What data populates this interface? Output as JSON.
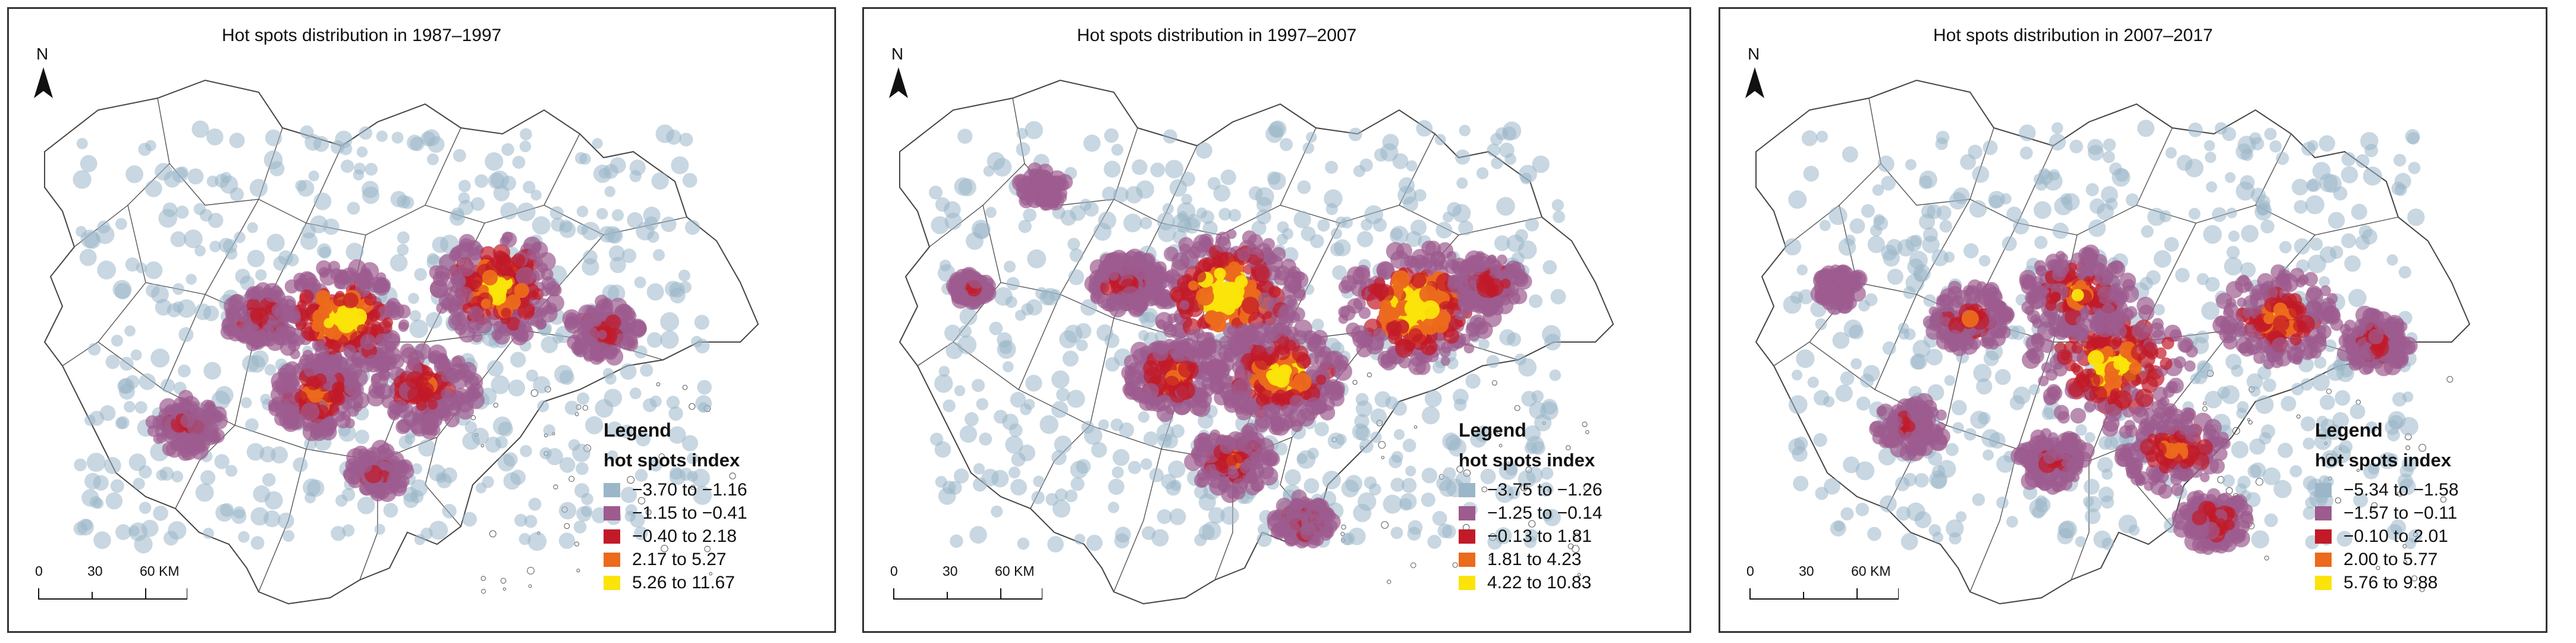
{
  "panels": [
    {
      "title": "Hot spots distribution in 1987–1997",
      "north": "N",
      "legend_title": "Legend",
      "legend_subtitle": "hot spots index",
      "classes": [
        "−3.70 to −1.16",
        "−1.15 to −0.41",
        "−0.40 to  2.18",
        "2.17 to 5.27",
        "5.26 to 11.67"
      ],
      "scale": [
        "0",
        "30",
        "60 KM"
      ]
    },
    {
      "title": "Hot spots distribution in 1997–2007",
      "north": "N",
      "legend_title": "Legend",
      "legend_subtitle": "hot spots index",
      "classes": [
        "−3.75 to −1.26",
        "−1.25 to −0.14",
        "−0.13 to 1.81",
        "1.81 to 4.23",
        "4.22 to 10.83"
      ],
      "scale": [
        "0",
        "30",
        "60 KM"
      ]
    },
    {
      "title": "Hot spots distribution in 2007–2017",
      "north": "N",
      "legend_title": "Legend",
      "legend_subtitle": "hot spots index",
      "classes": [
        "−5.34 to −1.58",
        "−1.57 to −0.11",
        "−0.10 to 2.01",
        "2.00 to 5.77",
        "5.76 to 9.88"
      ],
      "scale": [
        "0",
        "30",
        "60 KM"
      ]
    }
  ],
  "class_colors": [
    "#9bb6c9",
    "#9d5b8e",
    "#c21a28",
    "#ec6a1c",
    "#fbe40a"
  ]
}
